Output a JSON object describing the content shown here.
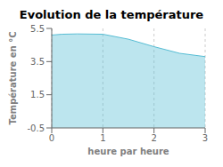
{
  "chart_data": {
    "type": "area",
    "title": "Evolution de la température",
    "xlabel": "heure par heure",
    "ylabel": "Température en °C",
    "x": [
      0,
      0.2,
      0.5,
      1.0,
      1.5,
      2.0,
      2.5,
      3.0
    ],
    "values": [
      5.1,
      5.15,
      5.17,
      5.15,
      4.85,
      4.4,
      4.0,
      3.8
    ],
    "xlim": [
      0,
      3
    ],
    "ylim": [
      -0.5,
      5.5
    ],
    "xticks": [
      0,
      1,
      2,
      3
    ],
    "yticks": [
      -0.5,
      1.5,
      3.5,
      5.5
    ],
    "color": "#57bdd4",
    "grid": "x"
  }
}
